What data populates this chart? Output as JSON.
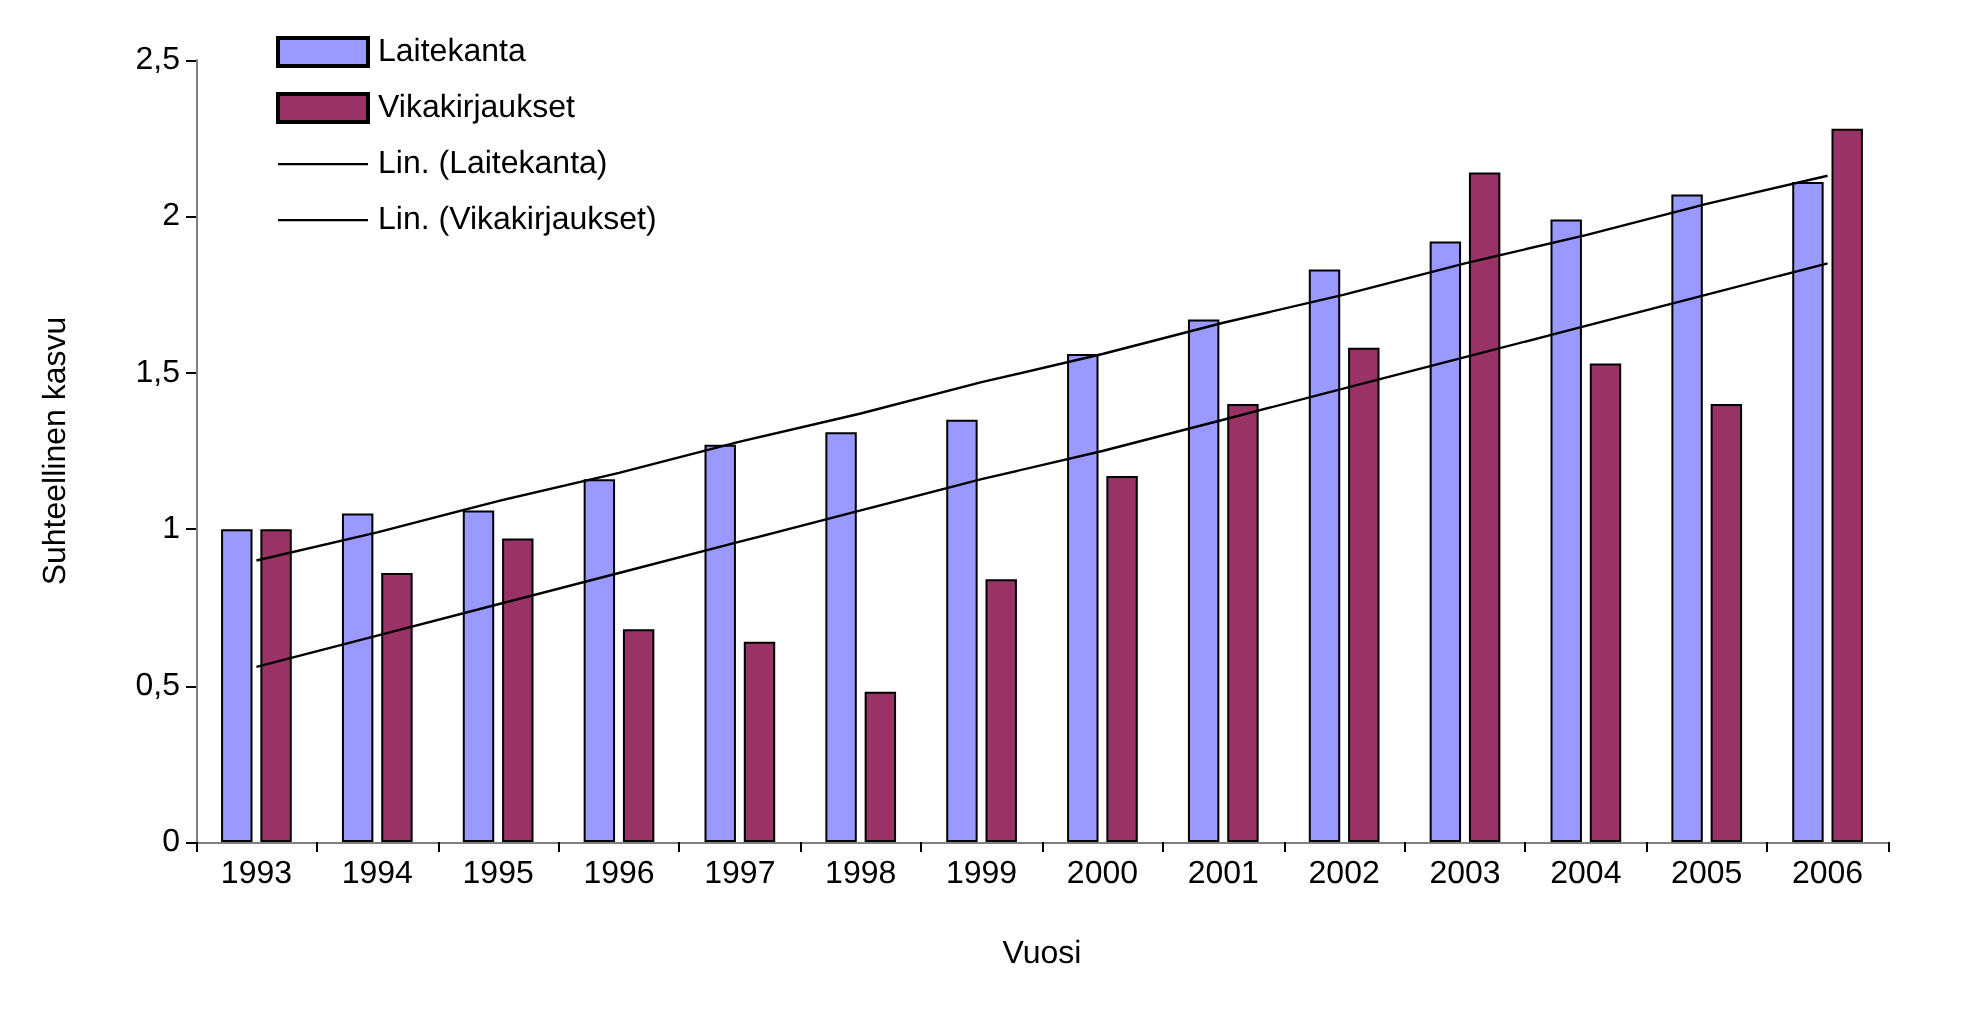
{
  "chart_data": {
    "type": "bar",
    "xlabel": "Vuosi",
    "ylabel": "Suhteellinen kasvu",
    "categories": [
      "1993",
      "1994",
      "1995",
      "1996",
      "1997",
      "1998",
      "1999",
      "2000",
      "2001",
      "2002",
      "2003",
      "2004",
      "2005",
      "2006"
    ],
    "series": [
      {
        "name": "Laitekanta",
        "color": "#9999ff",
        "values": [
          1.0,
          1.05,
          1.06,
          1.16,
          1.27,
          1.31,
          1.35,
          1.56,
          1.67,
          1.83,
          1.92,
          1.99,
          2.07,
          2.11
        ]
      },
      {
        "name": "Vikakirjaukset",
        "color": "#993366",
        "values": [
          1.0,
          0.86,
          0.97,
          0.68,
          0.64,
          0.48,
          0.84,
          1.17,
          1.4,
          1.58,
          2.14,
          1.53,
          1.4,
          2.28
        ]
      },
      {
        "name": "Lin. (Laitekanta)",
        "type": "line",
        "color": "#000000",
        "values": [
          0.9,
          0.99,
          1.09,
          1.18,
          1.28,
          1.37,
          1.47,
          1.56,
          1.66,
          1.75,
          1.85,
          1.94,
          2.04,
          2.13
        ]
      },
      {
        "name": "Lin. (Vikakirjaukset)",
        "type": "line",
        "color": "#000000",
        "values": [
          0.56,
          0.66,
          0.76,
          0.86,
          0.96,
          1.06,
          1.16,
          1.25,
          1.35,
          1.45,
          1.55,
          1.65,
          1.75,
          1.85
        ]
      }
    ],
    "ylim": [
      0,
      2.5
    ],
    "yticks": [
      {
        "value": 0,
        "label": "0"
      },
      {
        "value": 0.5,
        "label": "0,5"
      },
      {
        "value": 1,
        "label": "1"
      },
      {
        "value": 1.5,
        "label": "1,5"
      },
      {
        "value": 2,
        "label": "2"
      },
      {
        "value": 2.5,
        "label": "2,5"
      }
    ],
    "grid": false,
    "legend": "top left",
    "marker": "none"
  }
}
